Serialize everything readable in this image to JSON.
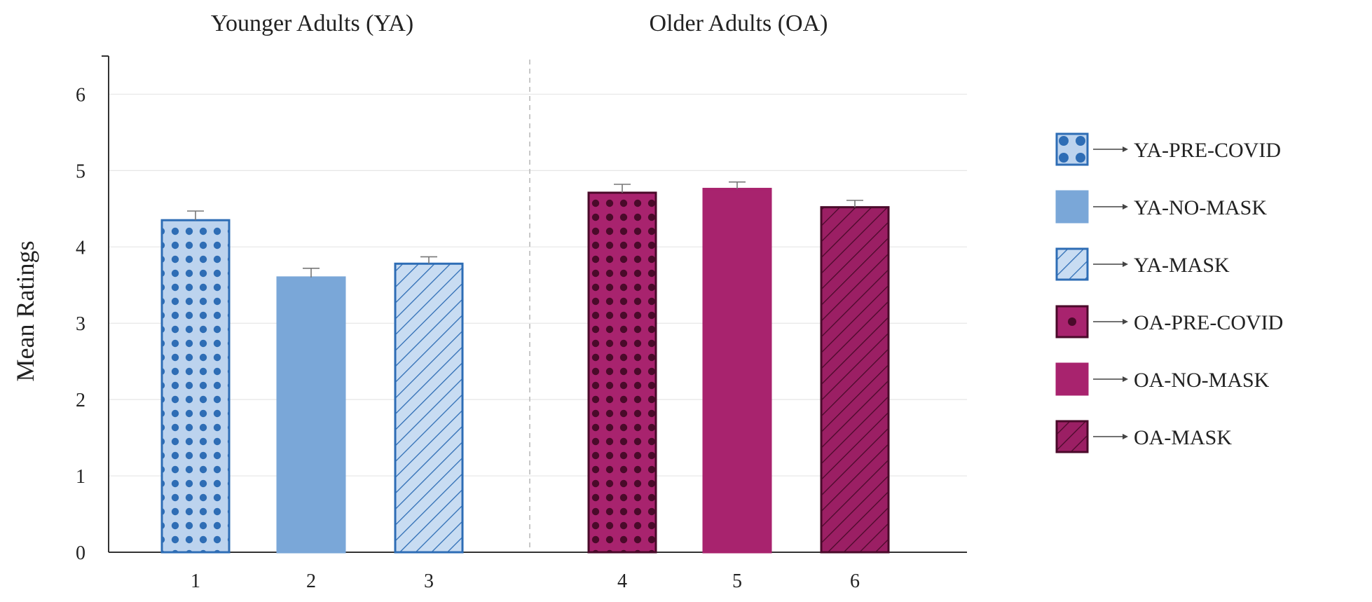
{
  "chart_data": {
    "type": "bar",
    "ylabel": "Mean Ratings",
    "ylim": [
      0,
      6.5
    ],
    "yticks": [
      0,
      1,
      2,
      3,
      4,
      5,
      6
    ],
    "grid": true,
    "groups": [
      {
        "title": "Younger Adults (YA)",
        "categories": [
          "1",
          "2",
          "3"
        ]
      },
      {
        "title": "Older Adults (OA)",
        "categories": [
          "4",
          "5",
          "6"
        ]
      }
    ],
    "categories": [
      "1",
      "2",
      "3",
      "4",
      "5",
      "6"
    ],
    "series": [
      {
        "name": "YA-PRE-COVID",
        "category": "1",
        "value": 4.35,
        "error": 0.12,
        "pattern": "dots",
        "fill": "#bcd3ee",
        "mark": "#2e6db5",
        "stroke": "#2e6db5"
      },
      {
        "name": "YA-NO-MASK",
        "category": "2",
        "value": 3.6,
        "error": 0.12,
        "pattern": "solid",
        "fill": "#7aa7d8",
        "mark": "#7aa7d8",
        "stroke": "#7aa7d8"
      },
      {
        "name": "YA-MASK",
        "category": "3",
        "value": 3.78,
        "error": 0.09,
        "pattern": "hatch",
        "fill": "#c8dcf2",
        "mark": "#2e6db5",
        "stroke": "#2e6db5"
      },
      {
        "name": "OA-PRE-COVID",
        "category": "4",
        "value": 4.71,
        "error": 0.11,
        "pattern": "dots",
        "fill": "#a8236e",
        "mark": "#4a0a2a",
        "stroke": "#4a0a2a"
      },
      {
        "name": "OA-NO-MASK",
        "category": "5",
        "value": 4.76,
        "error": 0.09,
        "pattern": "solid",
        "fill": "#a8236e",
        "mark": "#a8236e",
        "stroke": "#a8236e"
      },
      {
        "name": "OA-MASK",
        "category": "6",
        "value": 4.52,
        "error": 0.09,
        "pattern": "hatch",
        "fill": "#9b1f64",
        "mark": "#4a0a2a",
        "stroke": "#4a0a2a"
      }
    ],
    "legend": {
      "placement": "right",
      "arrow": "→"
    }
  }
}
